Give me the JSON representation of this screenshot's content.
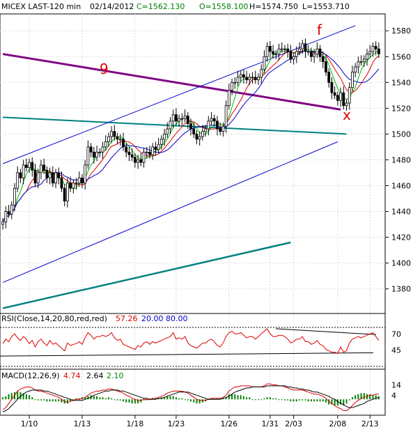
{
  "header": {
    "symbol": "MICEX LAST-120 min",
    "date": "02/14/2012",
    "close": "C=1562.130",
    "open": "O=1558.100",
    "high": "H=1574.750",
    "low": "L=1553.710"
  },
  "annotations": {
    "wave_9": "9",
    "wave_f": "f",
    "wave_x": "x"
  },
  "rsi": {
    "label": "RSI(Close,14,20,80,red,red)",
    "value": "57.26",
    "low_level": "20.00",
    "high_level": "80.00"
  },
  "macd": {
    "label": "MACD(12,26,9)",
    "macd_value": "4.74",
    "signal_value": "2.64",
    "hist_value": "2.10"
  },
  "colors": {
    "background": "#ffffff",
    "candle": "#000000",
    "ma_fast": "#00bb00",
    "ma_mid": "#dd0000",
    "ma_slow": "#0000cc",
    "channel": "#0000cc",
    "resistance": "#800080",
    "support": "#008080",
    "annotation": "#dd0000",
    "grid": "#c0c0c0"
  },
  "chart_data": [
    {
      "type": "line",
      "subtype": "candlestick",
      "title": "MICEX LAST-120 min",
      "xlabel": "",
      "ylabel": "",
      "x_ticks": [
        "1/10",
        "1/13",
        "1/18",
        "1/23",
        "1/26",
        "1/31",
        "2/03",
        "2/08",
        "2/13"
      ],
      "y_ticks": [
        1380,
        1400,
        1420,
        1440,
        1460,
        1480,
        1500,
        1520,
        1540,
        1560,
        1580
      ],
      "ylim": [
        1362,
        1592
      ],
      "grid": true,
      "series": [
        {
          "name": "",
          "values": [
            1432,
            1440,
            1438,
            1445,
            1458,
            1470,
            1466,
            1476,
            1474,
            1478,
            1472,
            1462,
            1470,
            1476,
            1472,
            1466,
            1470,
            1462,
            1470,
            1466,
            1458,
            1448,
            1462,
            1458,
            1462,
            1462,
            1466,
            1462,
            1476,
            1490,
            1486,
            1482,
            1486,
            1486,
            1490,
            1494,
            1498,
            1502,
            1498,
            1496,
            1496,
            1490,
            1486,
            1484,
            1482,
            1478,
            1480,
            1478,
            1486,
            1486,
            1484,
            1490,
            1488,
            1492,
            1496,
            1500,
            1504,
            1510,
            1515,
            1510,
            1512,
            1512,
            1514,
            1508,
            1504,
            1500,
            1496,
            1498,
            1502,
            1504,
            1510,
            1512,
            1510,
            1504,
            1502,
            1506,
            1522,
            1534,
            1540,
            1540,
            1544,
            1546,
            1544,
            1542,
            1544,
            1544,
            1542,
            1544,
            1550,
            1560,
            1568,
            1564,
            1562,
            1562,
            1566,
            1566,
            1566,
            1564,
            1558,
            1560,
            1564,
            1566,
            1570,
            1564,
            1564,
            1560,
            1562,
            1566,
            1560,
            1556,
            1548,
            1540,
            1532,
            1530,
            1526,
            1532,
            1522,
            1524,
            1536,
            1548,
            1552,
            1556,
            1556,
            1558,
            1562,
            1564,
            1568,
            1566,
            1562
          ]
        }
      ],
      "lines": [
        {
          "name": "9",
          "from": [
            0,
            1562
          ],
          "to": [
            115,
            1519
          ]
        },
        {
          "name": "",
          "from": [
            0,
            1513
          ],
          "to": [
            117,
            1500
          ]
        },
        {
          "name": "",
          "from": [
            0,
            1365
          ],
          "to": [
            98,
            1416
          ]
        },
        {
          "name": "",
          "from": [
            0,
            1477
          ],
          "to": [
            120,
            1584
          ]
        },
        {
          "name": "",
          "from": [
            0,
            1385
          ],
          "to": [
            114,
            1494
          ]
        }
      ]
    },
    {
      "type": "line",
      "title": "RSI(Close,14,20,80,red,red)",
      "y_ticks": [
        45,
        70
      ],
      "ylim": [
        20,
        80
      ],
      "series": [
        {
          "name": "RSI",
          "values": [
            55,
            62,
            58,
            66,
            70,
            64,
            60,
            66,
            62,
            55,
            60,
            50,
            58,
            62,
            56,
            52,
            60,
            54,
            56,
            52,
            48,
            44,
            56,
            52,
            54,
            55,
            58,
            54,
            64,
            72,
            68,
            62,
            66,
            66,
            68,
            66,
            68,
            72,
            64,
            60,
            62,
            54,
            52,
            50,
            48,
            46,
            52,
            50,
            56,
            58,
            54,
            58,
            56,
            58,
            60,
            62,
            64,
            66,
            72,
            62,
            64,
            62,
            66,
            56,
            52,
            50,
            48,
            52,
            56,
            56,
            60,
            62,
            58,
            52,
            50,
            56,
            66,
            72,
            74,
            70,
            70,
            72,
            68,
            64,
            66,
            66,
            62,
            66,
            70,
            74,
            78,
            70,
            66,
            66,
            68,
            68,
            66,
            62,
            56,
            58,
            62,
            62,
            66,
            58,
            58,
            54,
            56,
            60,
            54,
            52,
            46,
            44,
            42,
            42,
            40,
            50,
            42,
            44,
            56,
            62,
            64,
            66,
            64,
            66,
            68,
            70,
            72,
            66,
            60
          ]
        }
      ]
    },
    {
      "type": "line",
      "title": "MACD(12,26,9)",
      "y_ticks": [
        4,
        14
      ],
      "series": [
        {
          "name": "MACD",
          "values": [
            -10,
            -8,
            -4,
            0,
            4,
            8,
            10,
            11,
            12,
            12,
            11,
            9,
            8,
            8,
            7,
            6,
            5,
            4,
            3,
            2,
            0,
            -2,
            -3,
            -2,
            -1,
            0,
            0,
            1,
            2,
            4,
            6,
            7,
            8,
            8,
            9,
            9,
            10,
            10,
            9,
            8,
            7,
            6,
            4,
            3,
            1,
            0,
            -1,
            -1,
            0,
            0,
            0,
            1,
            1,
            2,
            3,
            4,
            6,
            7,
            8,
            8,
            8,
            8,
            7,
            6,
            4,
            2,
            0,
            -1,
            -1,
            -1,
            0,
            1,
            1,
            1,
            1,
            2,
            4,
            8,
            10,
            12,
            12,
            13,
            13,
            13,
            13,
            12,
            12,
            12,
            12,
            13,
            15,
            15,
            14,
            14,
            13,
            13,
            12,
            11,
            10,
            9,
            9,
            9,
            9,
            8,
            7,
            6,
            5,
            5,
            4,
            3,
            1,
            -2,
            -4,
            -6,
            -8,
            -9,
            -11,
            -11,
            -9,
            -6,
            -3,
            -1,
            1,
            2,
            3,
            4,
            4,
            5,
            5
          ]
        },
        {
          "name": "Signal",
          "values": [
            -12,
            -11,
            -9,
            -6,
            -3,
            0,
            3,
            5,
            7,
            8,
            9,
            9,
            9,
            9,
            8,
            8,
            7,
            6,
            5,
            4,
            3,
            2,
            1,
            0,
            -1,
            -1,
            -1,
            -1,
            0,
            1,
            2,
            4,
            5,
            6,
            7,
            8,
            8,
            9,
            9,
            9,
            8,
            8,
            7,
            6,
            5,
            4,
            3,
            2,
            1,
            1,
            0,
            0,
            0,
            1,
            1,
            2,
            3,
            4,
            5,
            6,
            7,
            7,
            7,
            7,
            6,
            5,
            4,
            3,
            2,
            1,
            0,
            0,
            0,
            0,
            0,
            1,
            2,
            3,
            5,
            7,
            8,
            9,
            10,
            11,
            11,
            12,
            12,
            12,
            12,
            12,
            13,
            13,
            13,
            13,
            13,
            13,
            13,
            12,
            12,
            11,
            11,
            10,
            10,
            9,
            9,
            8,
            7,
            7,
            6,
            5,
            4,
            3,
            1,
            0,
            -2,
            -4,
            -5,
            -7,
            -8,
            -8,
            -7,
            -6,
            -5,
            -4,
            -2,
            -1,
            0,
            1,
            2
          ]
        }
      ]
    }
  ]
}
